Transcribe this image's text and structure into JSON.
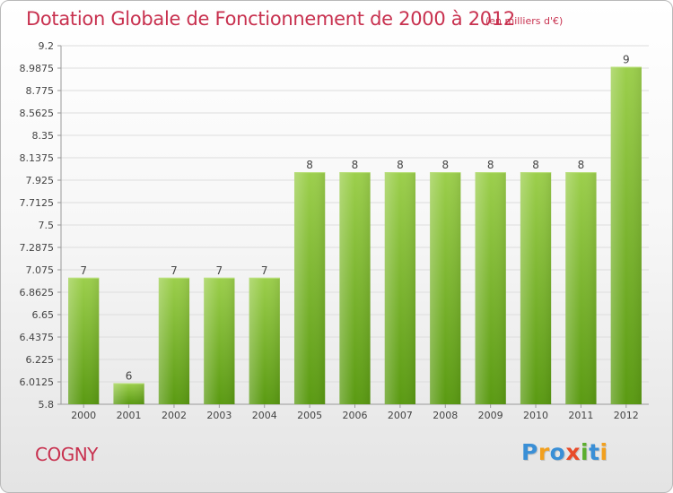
{
  "header": {
    "title": "Dotation Globale de Fonctionnement de 2000 à 2012",
    "unit": "(en milliers d'€)"
  },
  "footer": {
    "commune": "COGNY",
    "logo_text": "Proxiti"
  },
  "colors": {
    "title": "#c8314f",
    "bar_top": "#9ccf4c",
    "bar_bottom": "#5a9a12",
    "bar_bottom_alt": "#4f8d0c",
    "grid": "#dddddd",
    "logo_p": "#3a8fd6",
    "logo_r": "#f2a01e",
    "logo_o": "#3a8fd6",
    "logo_x": "#e84b2a",
    "logo_i": "#5cae2e",
    "logo_t": "#3a8fd6",
    "logo_i2": "#f2a01e"
  },
  "chart_data": {
    "type": "bar",
    "categories": [
      "2000",
      "2001",
      "2002",
      "2003",
      "2004",
      "2005",
      "2006",
      "2007",
      "2008",
      "2009",
      "2010",
      "2011",
      "2012"
    ],
    "values": [
      7,
      6,
      7,
      7,
      7,
      8,
      8,
      8,
      8,
      8,
      8,
      8,
      9
    ],
    "plot_values": [
      7.0,
      6.0,
      7.0,
      7.0,
      7.0,
      8.0,
      8.0,
      8.0,
      8.0,
      8.0,
      8.0,
      8.0,
      9.0
    ],
    "value_labels": [
      "7",
      "6",
      "7",
      "7",
      "7",
      "8",
      "8",
      "8",
      "8",
      "8",
      "8",
      "8",
      "9"
    ],
    "yticks": [
      "9.2",
      "8.9875",
      "8.775",
      "8.5625",
      "8.35",
      "8.1375",
      "7.925",
      "7.7125",
      "7.5",
      "7.2875",
      "7.075",
      "6.8625",
      "6.65",
      "6.4375",
      "6.225",
      "6.0125",
      "5.8"
    ],
    "ylim": [
      5.8,
      9.2
    ],
    "grid": true,
    "title": "Dotation Globale de Fonctionnement de 2000 à 2012",
    "xlabel": "",
    "ylabel": ""
  }
}
